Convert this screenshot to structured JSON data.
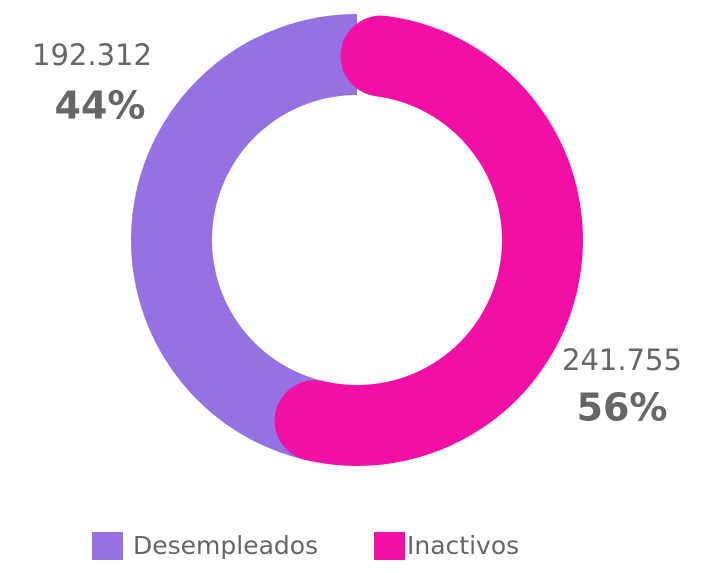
{
  "chart_data": {
    "type": "donut",
    "categories": [
      "Desempleados",
      "Inactivos"
    ],
    "values": [
      192312,
      241755
    ],
    "value_labels": [
      "192.312",
      "241.755"
    ],
    "percent_labels": [
      "44%",
      "56%"
    ],
    "colors": [
      "#9571e1",
      "#f20fa6"
    ]
  }
}
